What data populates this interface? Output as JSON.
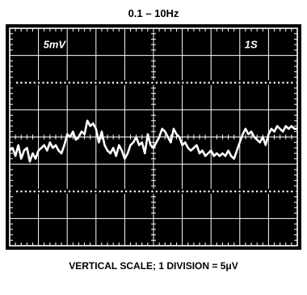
{
  "title": "0.1 – 10Hz",
  "caption": "VERTICAL SCALE; 1 DIVISION = 5μV",
  "colors": {
    "screen": "#000000",
    "trace": "#ffffff"
  },
  "chart_data": {
    "type": "line",
    "title": "0.1 – 10Hz",
    "divisions": {
      "horizontal": 10,
      "vertical": 8
    },
    "annotations": [
      {
        "text": "5mV",
        "division": [
          1,
          0.55
        ]
      },
      {
        "text": "1S",
        "division": [
          8,
          0.55
        ]
      }
    ],
    "dotted_reference_lines_at_division": [
      2,
      6
    ],
    "xlim": [
      0,
      10
    ],
    "ylim": [
      -4,
      4
    ],
    "xlabel": "",
    "ylabel": "",
    "series": [
      {
        "x": [
          0.0,
          0.1,
          0.2,
          0.3,
          0.4,
          0.5,
          0.6,
          0.7,
          0.8,
          0.9,
          1.0,
          1.1,
          1.2,
          1.3,
          1.4,
          1.5,
          1.6,
          1.7,
          1.8,
          1.9,
          2.0,
          2.1,
          2.2,
          2.3,
          2.4,
          2.5,
          2.6,
          2.7,
          2.8,
          2.9,
          3.0,
          3.1,
          3.2,
          3.3,
          3.4,
          3.5,
          3.6,
          3.7,
          3.8,
          3.9,
          4.0,
          4.1,
          4.2,
          4.3,
          4.4,
          4.5,
          4.6,
          4.7,
          4.8,
          4.9,
          5.0,
          5.1,
          5.2,
          5.3,
          5.4,
          5.5,
          5.6,
          5.7,
          5.8,
          5.9,
          6.0,
          6.1,
          6.2,
          6.3,
          6.4,
          6.5,
          6.6,
          6.7,
          6.8,
          6.9,
          7.0,
          7.1,
          7.2,
          7.3,
          7.4,
          7.5,
          7.6,
          7.7,
          7.8,
          7.9,
          8.0,
          8.1,
          8.2,
          8.3,
          8.4,
          8.5,
          8.6,
          8.7,
          8.8,
          8.9,
          9.0,
          9.1,
          9.2,
          9.3,
          9.4,
          9.5,
          9.6,
          9.7,
          9.8,
          9.9,
          10.0
        ],
        "y": [
          -0.5,
          -0.4,
          -0.7,
          -0.3,
          -0.8,
          -0.5,
          -0.4,
          -0.9,
          -0.6,
          -0.8,
          -0.5,
          -0.4,
          -0.3,
          -0.5,
          -0.2,
          -0.4,
          -0.3,
          -0.5,
          -0.6,
          -0.3,
          0.1,
          0.0,
          0.2,
          -0.1,
          0.0,
          0.2,
          0.1,
          0.6,
          0.4,
          0.5,
          0.3,
          -0.2,
          0.2,
          -0.3,
          -0.5,
          -0.6,
          -0.4,
          -0.7,
          -0.3,
          -0.5,
          -0.8,
          -0.6,
          -0.3,
          -0.2,
          0.0,
          -0.3,
          -0.2,
          -0.6,
          0.1,
          -0.3,
          -0.4,
          -0.2,
          0.0,
          0.3,
          0.2,
          0.0,
          -0.2,
          0.3,
          0.1,
          0.0,
          -0.3,
          -0.2,
          -0.4,
          -0.5,
          -0.4,
          -0.3,
          -0.6,
          -0.5,
          -0.7,
          -0.6,
          -0.5,
          -0.7,
          -0.6,
          -0.7,
          -0.6,
          -0.7,
          -0.5,
          -0.7,
          -0.8,
          -0.5,
          -0.2,
          0.1,
          0.3,
          0.1,
          0.2,
          0.0,
          -0.1,
          -0.2,
          0.0,
          -0.3,
          0.1,
          0.3,
          0.2,
          0.4,
          0.3,
          0.2,
          0.4,
          0.3,
          0.4,
          0.3,
          0.3
        ]
      }
    ]
  }
}
